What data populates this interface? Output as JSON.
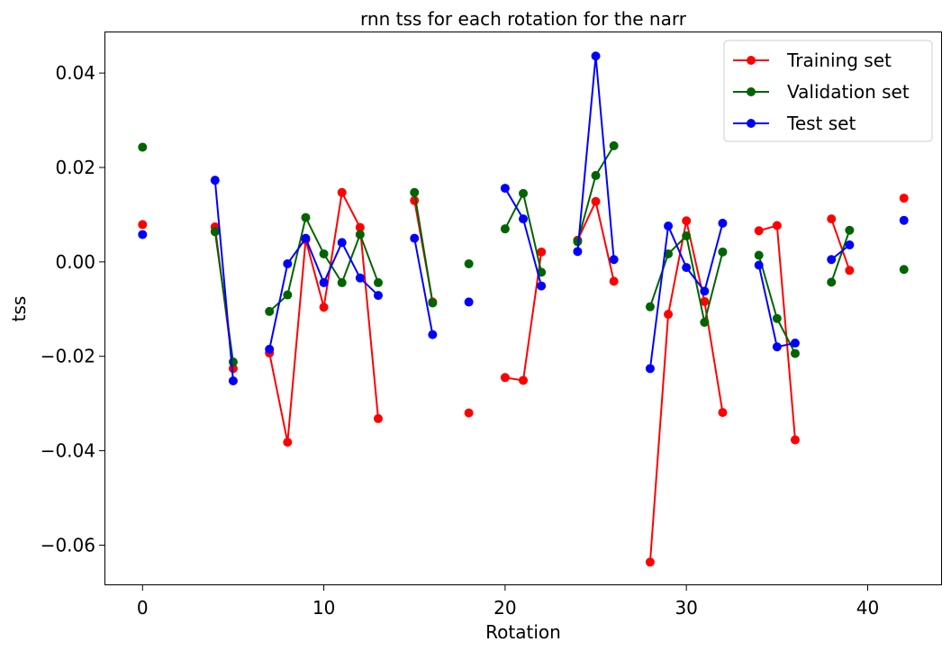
{
  "chart_data": {
    "type": "line",
    "title": "rnn tss for each rotation for the narr",
    "xlabel": "Rotation",
    "ylabel": "tss",
    "xlim": [
      -2.1,
      44.1
    ],
    "ylim": [
      -0.0685,
      0.0488
    ],
    "xticks": [
      0,
      10,
      20,
      30,
      40
    ],
    "yticks": [
      -0.06,
      -0.04,
      -0.02,
      0.0,
      0.02,
      0.04
    ],
    "ytick_labels": [
      "−0.06",
      "−0.04",
      "−0.02",
      "0.00",
      "0.02",
      "0.04"
    ],
    "grid": false,
    "legend_position": "top-right",
    "segments_break_on_missing_rotations": true,
    "series": [
      {
        "name": "Training set",
        "color": "#ff0000",
        "x": [
          0,
          4,
          5,
          7,
          8,
          9,
          10,
          11,
          12,
          13,
          15,
          16,
          18,
          20,
          21,
          22,
          24,
          25,
          26,
          28,
          29,
          30,
          31,
          32,
          34,
          35,
          36,
          38,
          39,
          42
        ],
        "y": [
          0.0079,
          0.0074,
          -0.0226,
          -0.0193,
          -0.0382,
          0.0047,
          -0.0096,
          0.0147,
          0.0073,
          -0.0332,
          0.013,
          -0.0085,
          -0.032,
          -0.0245,
          -0.0251,
          0.0021,
          0.0046,
          0.0128,
          -0.0041,
          -0.0636,
          -0.0111,
          0.0087,
          -0.0084,
          -0.0319,
          0.0066,
          0.0077,
          -0.0377,
          0.0091,
          -0.0018,
          0.0135
        ]
      },
      {
        "name": "Validation set",
        "color": "#006400",
        "x": [
          0,
          4,
          5,
          7,
          8,
          9,
          10,
          11,
          12,
          13,
          15,
          16,
          18,
          20,
          21,
          22,
          24,
          25,
          26,
          28,
          29,
          30,
          31,
          32,
          34,
          35,
          36,
          38,
          39,
          42
        ],
        "y": [
          0.0243,
          0.0064,
          -0.0212,
          -0.0105,
          -0.007,
          0.0094,
          0.0017,
          -0.0044,
          0.0058,
          -0.0044,
          0.0147,
          -0.0087,
          -0.0004,
          0.007,
          0.0145,
          -0.0022,
          0.0043,
          0.0183,
          0.0246,
          -0.0095,
          0.0017,
          0.0055,
          -0.0128,
          0.0021,
          0.0014,
          -0.012,
          -0.0194,
          -0.0043,
          0.0067,
          -0.0016
        ]
      },
      {
        "name": "Test set",
        "color": "#0000ff",
        "x": [
          0,
          4,
          5,
          7,
          8,
          9,
          10,
          11,
          12,
          13,
          15,
          16,
          18,
          20,
          21,
          22,
          24,
          25,
          26,
          28,
          29,
          30,
          31,
          32,
          34,
          35,
          36,
          38,
          39,
          42
        ],
        "y": [
          0.0058,
          0.0173,
          -0.0252,
          -0.0185,
          -0.0004,
          0.005,
          -0.0044,
          0.0041,
          -0.0034,
          -0.0071,
          0.005,
          -0.0154,
          -0.0085,
          0.0156,
          0.0091,
          -0.0051,
          0.0022,
          0.0436,
          0.0005,
          -0.0226,
          0.0076,
          -0.0012,
          -0.0062,
          0.0082,
          -0.0007,
          -0.018,
          -0.0172,
          0.0005,
          0.0036,
          0.0088
        ]
      }
    ]
  }
}
